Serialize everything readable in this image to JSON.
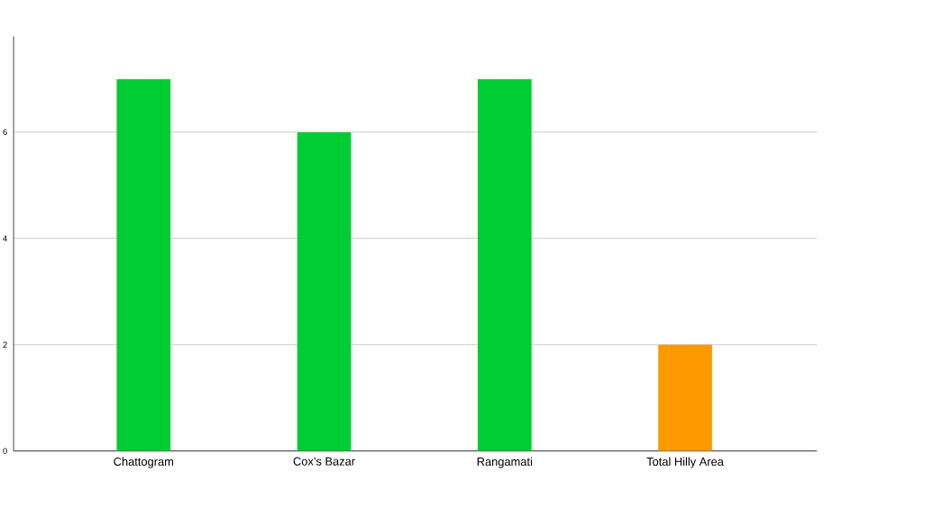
{
  "chart_data": {
    "type": "bar",
    "categories": [
      "Chattogram",
      "Cox’s Bazar",
      "Rangamati",
      "Total Hilly Area"
    ],
    "values": [
      7,
      6,
      7,
      2
    ],
    "colors": [
      "#00cc33",
      "#00cc33",
      "#00cc33",
      "#ff9900"
    ],
    "ylim": [
      0,
      7.8
    ],
    "yticks": [
      0,
      2,
      4,
      6
    ],
    "grid": "y"
  }
}
